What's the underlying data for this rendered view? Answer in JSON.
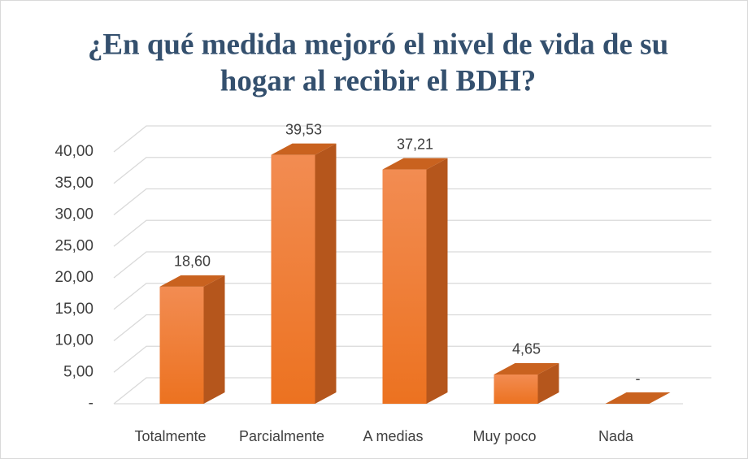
{
  "chart_data": {
    "type": "bar3d",
    "title": [
      "¿En qué medida mejoró el nivel de vida de su",
      "hogar al recibir el BDH?"
    ],
    "categories": [
      "Totalmente",
      "Parcialmente",
      "A medias",
      "Muy poco",
      "Nada"
    ],
    "values": [
      18.6,
      39.53,
      37.21,
      4.65,
      0
    ],
    "value_labels": [
      "18,60",
      "39,53",
      "37,21",
      "4,65",
      "-"
    ],
    "color": "#f07d32",
    "ylim": [
      0,
      40
    ],
    "yticks": [
      {
        "value": 0,
        "label": "-"
      },
      {
        "value": 5,
        "label": "5,00"
      },
      {
        "value": 10,
        "label": "10,00"
      },
      {
        "value": 15,
        "label": "15,00"
      },
      {
        "value": 20,
        "label": "20,00"
      },
      {
        "value": 25,
        "label": "25,00"
      },
      {
        "value": 30,
        "label": "30,00"
      },
      {
        "value": 35,
        "label": "35,00"
      },
      {
        "value": 40,
        "label": "40,00"
      }
    ],
    "grid": true
  }
}
